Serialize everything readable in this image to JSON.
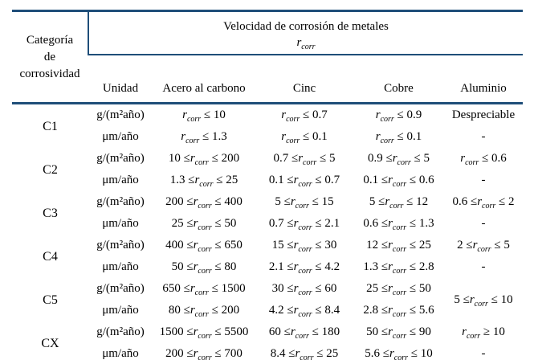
{
  "table": {
    "header": {
      "category_lines": [
        "Categoría",
        "de",
        "corrosividad"
      ],
      "banner_title": "Velocidad de corrosión de metales",
      "rcorr": {
        "base": "r",
        "sub": "corr"
      },
      "columns": [
        "Unidad",
        "Acero al carbono",
        "Cinc",
        "Cobre",
        "Aluminio"
      ]
    },
    "rows": [
      {
        "category": "C1",
        "lines": [
          {
            "unit": "g/(m²año)",
            "cells": [
              {
                "pre": "",
                "post": "≤ 10"
              },
              {
                "pre": "",
                "post": "≤ 0.7"
              },
              {
                "pre": "",
                "post": "≤ 0.9"
              },
              {
                "text": "Despreciable"
              }
            ]
          },
          {
            "unit": "μm/año",
            "cells": [
              {
                "pre": "",
                "post": "≤ 1.3"
              },
              {
                "pre": "",
                "post": "≤ 0.1"
              },
              {
                "pre": "",
                "post": "≤ 0.1"
              },
              {
                "text": "-"
              }
            ]
          }
        ]
      },
      {
        "category": "C2",
        "lines": [
          {
            "unit": "g/(m²año)",
            "cells": [
              {
                "pre": "10 ≤",
                "post": "≤ 200"
              },
              {
                "pre": "0.7 ≤",
                "post": "≤ 5"
              },
              {
                "pre": "0.9 ≤",
                "post": "≤ 5"
              },
              {
                "pre": "",
                "post": "≤ 0.6"
              }
            ]
          },
          {
            "unit": "μm/año",
            "cells": [
              {
                "pre": "1.3 ≤",
                "post": "≤ 25"
              },
              {
                "pre": "0.1 ≤",
                "post": "≤ 0.7"
              },
              {
                "pre": "0.1 ≤",
                "post": "≤ 0.6"
              },
              {
                "text": "-"
              }
            ]
          }
        ]
      },
      {
        "category": "C3",
        "lines": [
          {
            "unit": "g/(m²año)",
            "cells": [
              {
                "pre": "200 ≤",
                "post": "≤ 400"
              },
              {
                "pre": "5 ≤",
                "post": "≤ 15"
              },
              {
                "pre": "5 ≤",
                "post": "≤ 12"
              },
              {
                "pre": "0.6 ≤",
                "post": "≤ 2"
              }
            ]
          },
          {
            "unit": "μm/año",
            "cells": [
              {
                "pre": "25 ≤",
                "post": "≤ 50"
              },
              {
                "pre": "0.7 ≤",
                "post": "≤ 2.1"
              },
              {
                "pre": "0.6 ≤",
                "post": "≤ 1.3"
              },
              {
                "text": "-"
              }
            ]
          }
        ]
      },
      {
        "category": "C4",
        "lines": [
          {
            "unit": "g/(m²año)",
            "cells": [
              {
                "pre": "400 ≤",
                "post": "≤ 650"
              },
              {
                "pre": "15 ≤",
                "post": "≤ 30"
              },
              {
                "pre": "12 ≤",
                "post": "≤ 25"
              },
              {
                "pre": "2 ≤",
                "post": "≤ 5"
              }
            ]
          },
          {
            "unit": "μm/año",
            "cells": [
              {
                "pre": "50 ≤",
                "post": "≤ 80"
              },
              {
                "pre": "2.1 ≤",
                "post": "≤ 4.2"
              },
              {
                "pre": "1.3 ≤",
                "post": "≤ 2.8"
              },
              {
                "text": "-"
              }
            ]
          }
        ]
      },
      {
        "category": "C5",
        "lines": [
          {
            "unit": "g/(m²año)",
            "cells": [
              {
                "pre": "650 ≤",
                "post": "≤ 1500"
              },
              {
                "pre": "30 ≤",
                "post": "≤ 60"
              },
              {
                "pre": "25 ≤",
                "post": "≤ 50"
              },
              {
                "pre": "5 ≤",
                "post": "≤ 10",
                "rowspan": 2
              }
            ]
          },
          {
            "unit": "μm/año",
            "cells": [
              {
                "pre": "80 ≤",
                "post": "≤ 200"
              },
              {
                "pre": "4.2 ≤",
                "post": "≤ 8.4"
              },
              {
                "pre": "2.8 ≤",
                "post": "≤ 5.6"
              },
              null
            ]
          }
        ]
      },
      {
        "category": "CX",
        "lines": [
          {
            "unit": "g/(m²año)",
            "cells": [
              {
                "pre": "1500 ≤",
                "post": "≤ 5500"
              },
              {
                "pre": "60 ≤",
                "post": "≤ 180"
              },
              {
                "pre": "50 ≤",
                "post": "≤ 90"
              },
              {
                "pre": "",
                "post": "≥ 10"
              }
            ]
          },
          {
            "unit": "μm/año",
            "cells": [
              {
                "pre": "200 ≤",
                "post": "≤ 700"
              },
              {
                "pre": "8.4 ≤",
                "post": "≤ 25"
              },
              {
                "pre": "5.6 ≤",
                "post": "≤ 10"
              },
              {
                "text": "-"
              }
            ]
          }
        ]
      }
    ]
  }
}
